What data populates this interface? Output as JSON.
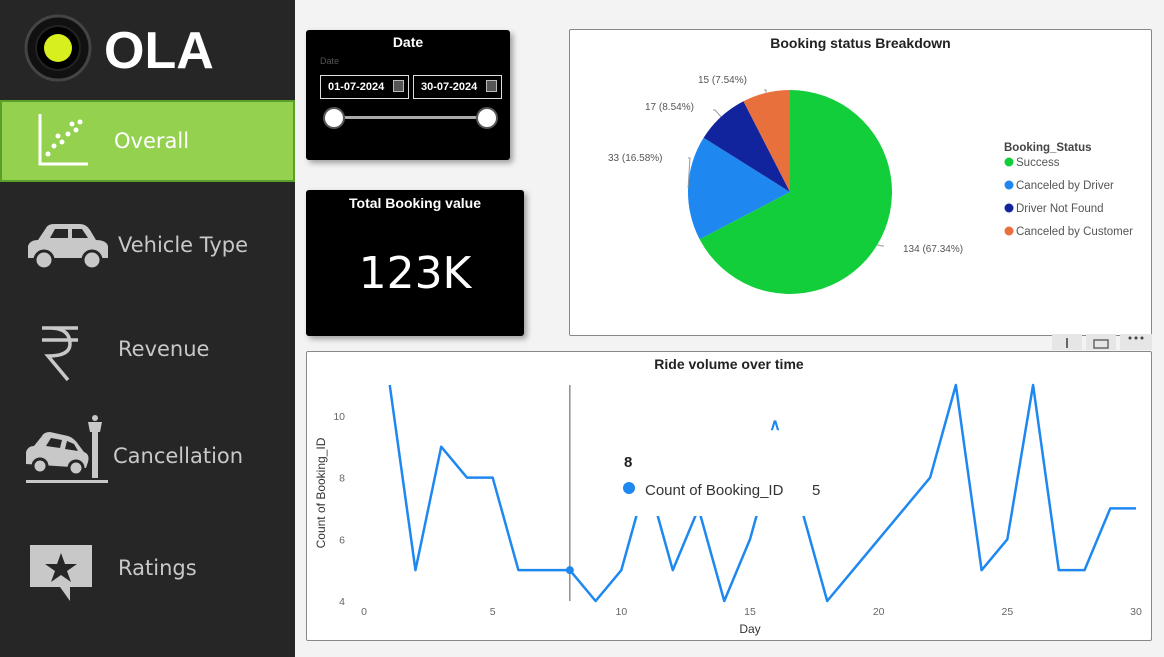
{
  "app": {
    "logo_text": "OLA"
  },
  "sidebar": {
    "items": [
      {
        "label": "Overall",
        "icon": "scatter-chart-icon",
        "active": true
      },
      {
        "label": "Vehicle Type",
        "icon": "car-icon"
      },
      {
        "label": "Revenue",
        "icon": "rupee-icon"
      },
      {
        "label": "Cancellation",
        "icon": "car-crash-icon"
      },
      {
        "label": "Ratings",
        "icon": "star-speech-bubble-icon"
      }
    ]
  },
  "date_filter": {
    "title": "Date",
    "field_label": "Date",
    "start": "01-07-2024",
    "end": "30-07-2024",
    "range_selected_fraction": [
      0,
      1
    ]
  },
  "total_booking": {
    "title": "Total Booking value",
    "value": "123K"
  },
  "colors": {
    "accent_green": "#93d14f",
    "success": "#12ce3a",
    "canceled_by_driver": "#1e88f0",
    "driver_not_found": "#12239e",
    "canceled_by_customer": "#e8703c",
    "line": "#1e88f0"
  },
  "chart_data": [
    {
      "type": "pie",
      "title": "Booking status Breakdown",
      "legend_title": "Booking_Status",
      "legend_position": "right",
      "slices": [
        {
          "name": "Success",
          "value": 134,
          "label": "134 (67.34%)",
          "color": "#12ce3a"
        },
        {
          "name": "Canceled by Driver",
          "value": 33,
          "label": "33 (16.58%)",
          "color": "#1e88f0"
        },
        {
          "name": "Driver Not Found",
          "value": 17,
          "label": "17 (8.54%)",
          "color": "#12239e"
        },
        {
          "name": "Canceled by Customer",
          "value": 15,
          "label": "15 (7.54%)",
          "color": "#e8703c"
        }
      ]
    },
    {
      "type": "line",
      "title": "Ride volume over time",
      "xlabel": "Day",
      "ylabel": "Count of Booking_ID",
      "xlim": [
        0,
        30
      ],
      "ylim": [
        4,
        11
      ],
      "xticks": [
        0,
        5,
        10,
        15,
        20,
        25,
        30
      ],
      "yticks": [
        4,
        6,
        8,
        10
      ],
      "grid": false,
      "x": [
        1,
        2,
        3,
        4,
        5,
        6,
        7,
        8,
        9,
        10,
        11,
        12,
        13,
        14,
        15,
        16,
        17,
        18,
        19,
        20,
        21,
        22,
        23,
        24,
        25,
        26,
        27,
        28,
        29,
        30
      ],
      "values": [
        11,
        5,
        9,
        8,
        8,
        5,
        5,
        5,
        4,
        5,
        8,
        5,
        7,
        4,
        6,
        9,
        7,
        4,
        5,
        6,
        7,
        8,
        11,
        5,
        6,
        11,
        5,
        5,
        7,
        7
      ],
      "tooltip": {
        "x": "8",
        "series": "Count of Booking_ID",
        "value": "5"
      },
      "tooltip_arrow": "∧"
    }
  ]
}
